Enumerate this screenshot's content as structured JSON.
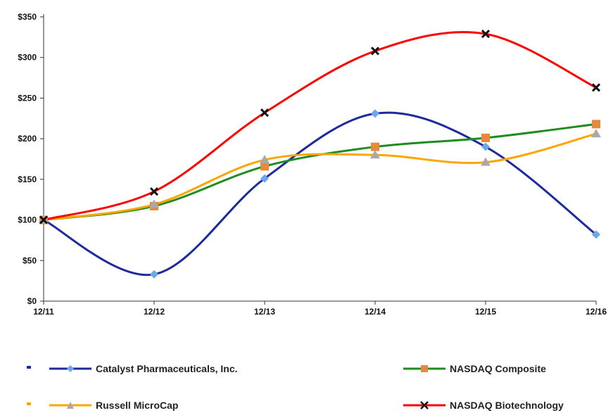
{
  "chart_data": {
    "type": "line",
    "title": "",
    "xlabel": "",
    "ylabel": "",
    "categories": [
      "12/11",
      "12/12",
      "12/13",
      "12/14",
      "12/15",
      "12/16"
    ],
    "ylim": [
      0,
      350
    ],
    "yticks": [
      "$0",
      "$50",
      "$100",
      "$150",
      "$200",
      "$250",
      "$300",
      "$350"
    ],
    "ytick_values": [
      0,
      50,
      100,
      150,
      200,
      250,
      300,
      350
    ],
    "grid": false,
    "legend_position": "bottom",
    "series": [
      {
        "name": "Catalyst Pharmaceuticals, Inc.",
        "values": [
          100,
          33,
          151,
          231,
          190,
          82
        ],
        "color": "#1c2a9c",
        "marker": "diamond",
        "marker_color": "#6aa8e8"
      },
      {
        "name": "NASDAQ Composite",
        "values": [
          100,
          117,
          166,
          190,
          201,
          218
        ],
        "color": "#1e8c1e",
        "marker": "square",
        "marker_color": "#e8883a"
      },
      {
        "name": "Russell MicroCap",
        "values": [
          100,
          119,
          174,
          180,
          171,
          206
        ],
        "color": "#ffa500",
        "marker": "triangle",
        "marker_color": "#a9a9a9"
      },
      {
        "name": "NASDAQ Biotechnology",
        "values": [
          100,
          135,
          232,
          308,
          329,
          263
        ],
        "color": "#ff0000",
        "marker": "x",
        "marker_color": "#111111"
      }
    ]
  }
}
